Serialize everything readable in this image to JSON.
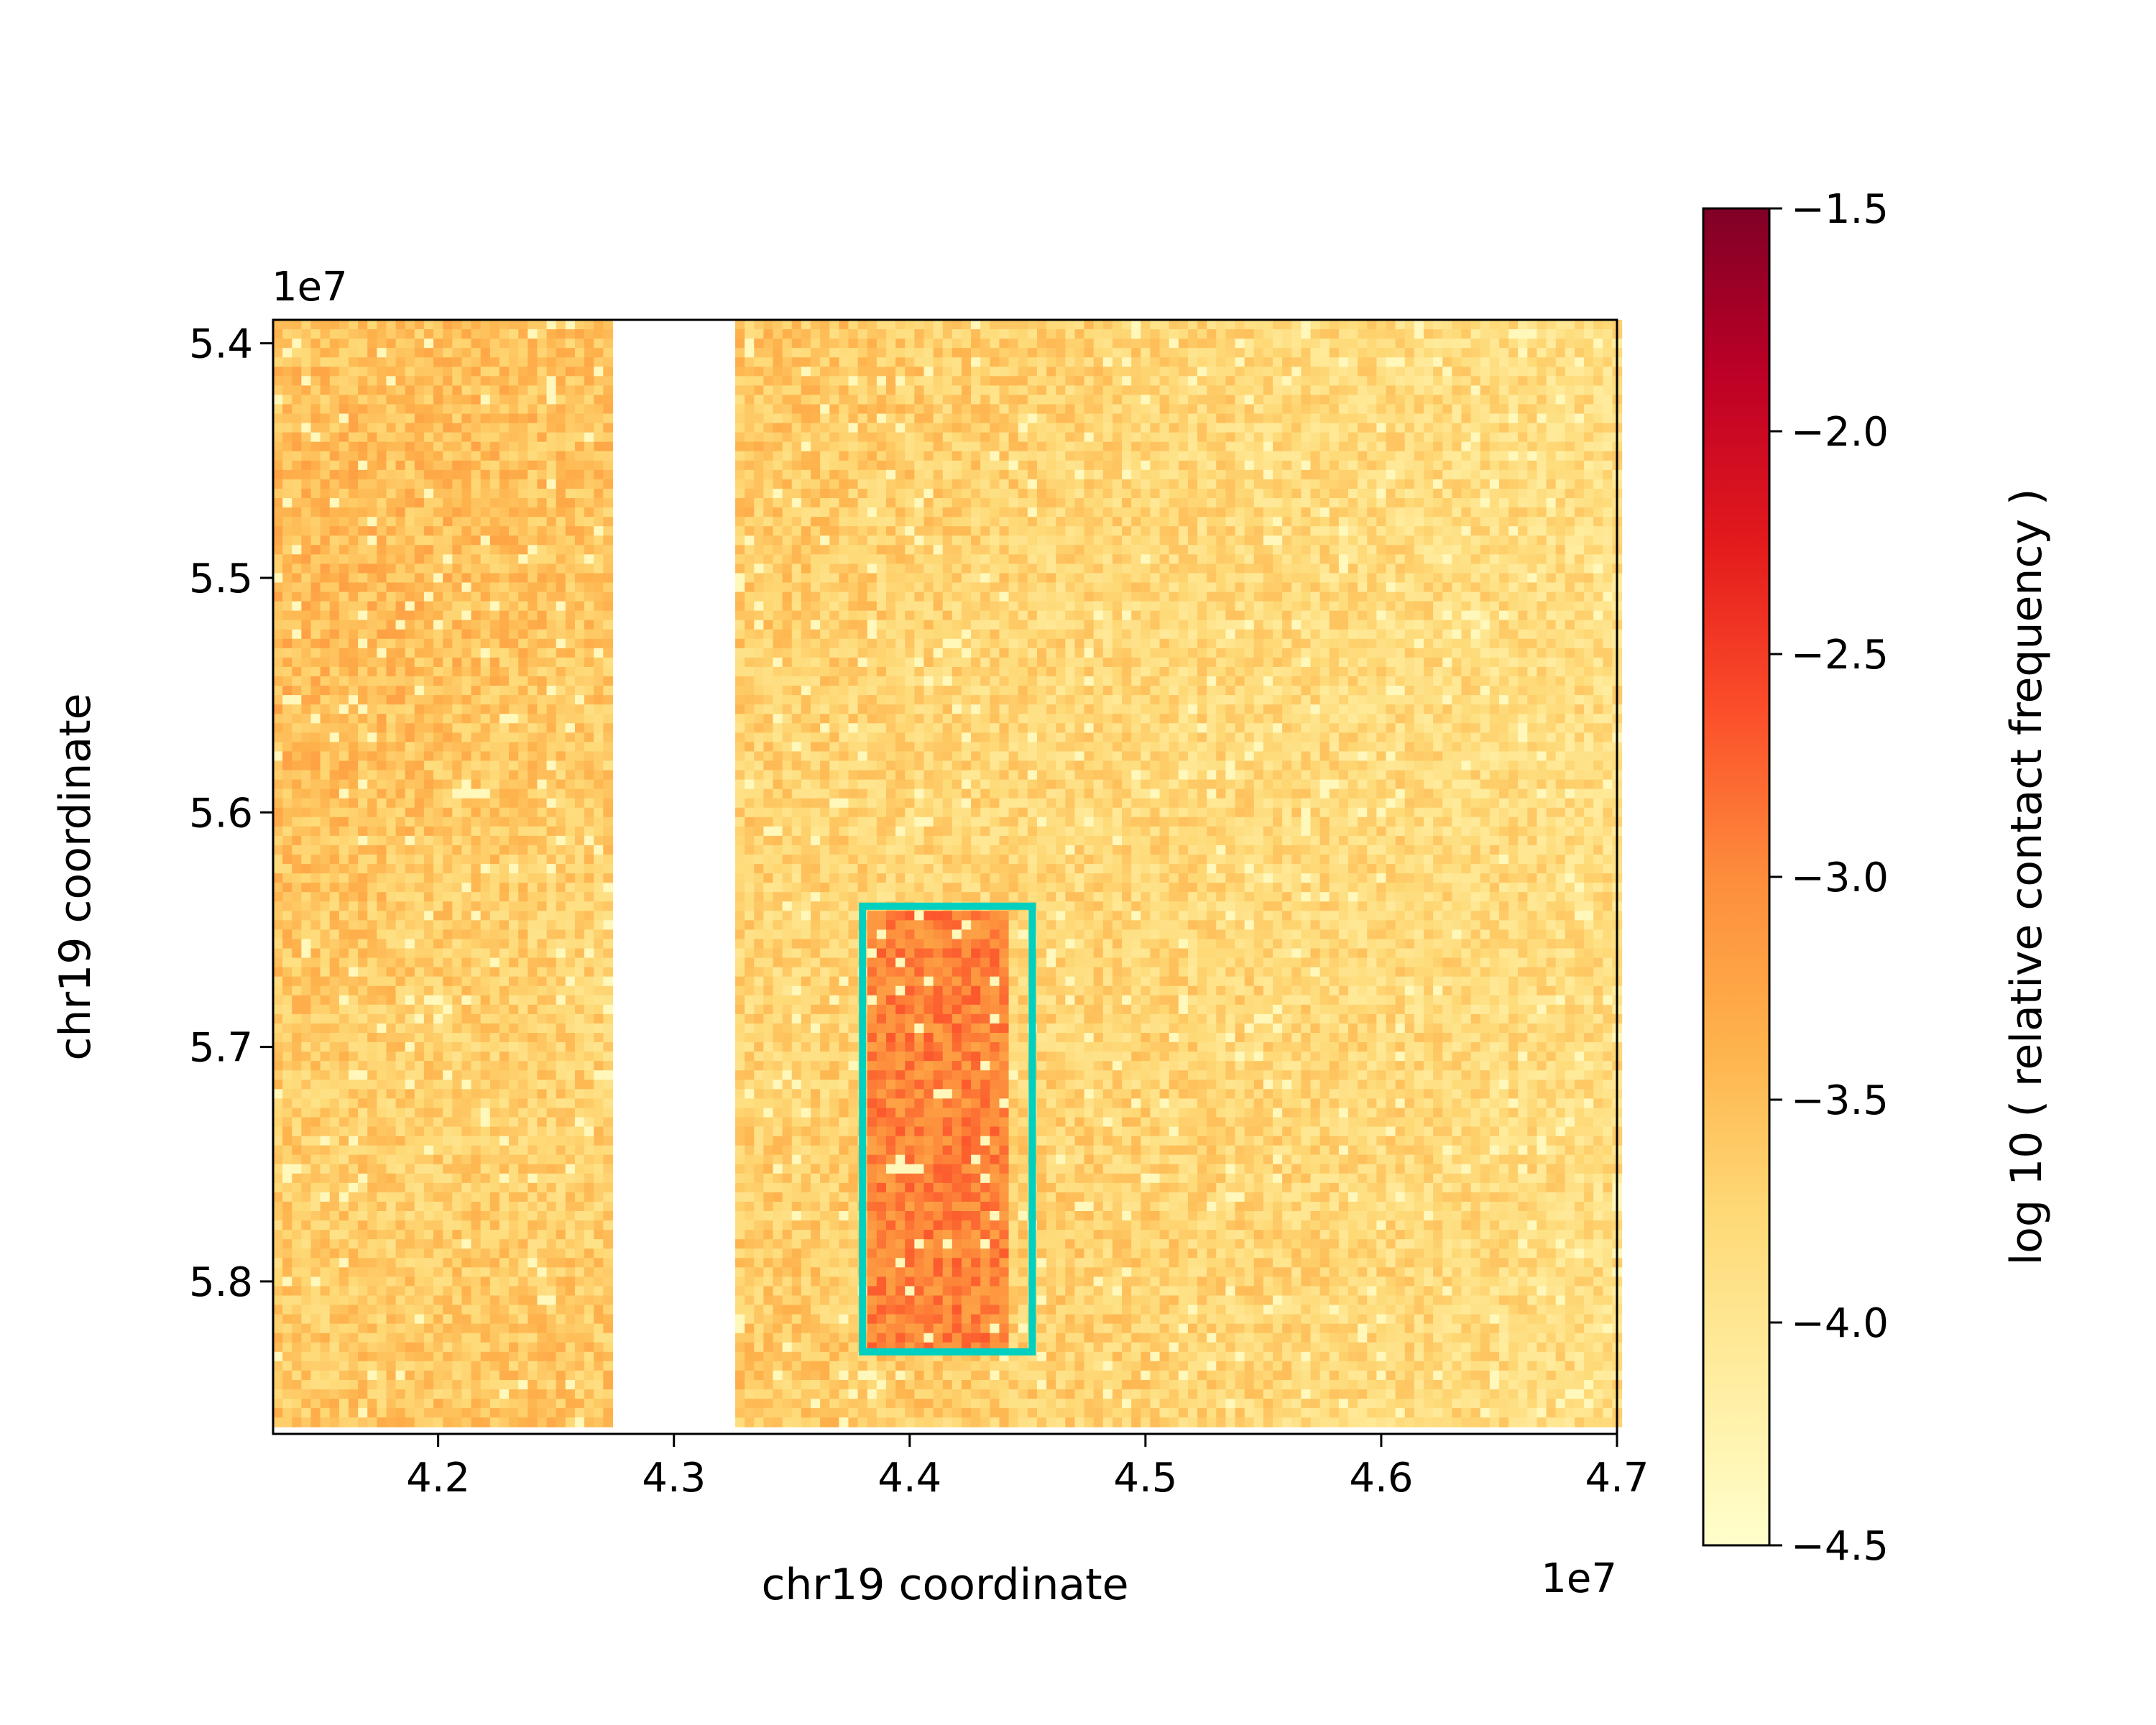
{
  "chart_data": {
    "type": "heatmap",
    "xlabel": "chr19 coordinate",
    "ylabel": "chr19 coordinate",
    "x_offset_text": "1e7",
    "y_offset_text": "1e7",
    "xlim": [
      41300000,
      47000000
    ],
    "ylim": [
      58650000,
      53900000
    ],
    "x_ticks": [
      42000000,
      43000000,
      44000000,
      45000000,
      46000000,
      47000000
    ],
    "x_tick_labels": [
      "4.2",
      "4.3",
      "4.4",
      "4.5",
      "4.6",
      "4.7"
    ],
    "y_ticks": [
      54000000,
      55000000,
      56000000,
      57000000,
      58000000
    ],
    "y_tick_labels": [
      "5.4",
      "5.5",
      "5.6",
      "5.7",
      "5.8"
    ],
    "colorbar": {
      "label": "log 10 ( relative contact frequency )",
      "range": [
        -4.5,
        -1.5
      ],
      "ticks": [
        -1.5,
        -2.0,
        -2.5,
        -3.0,
        -3.5,
        -4.0,
        -4.5
      ],
      "tick_labels": [
        "−1.5",
        "−2.0",
        "−2.5",
        "−3.0",
        "−3.5",
        "−4.0",
        "−4.5"
      ],
      "colormap": "YlOrRd",
      "colors": [
        "#ffffcc",
        "#ffeda0",
        "#fed976",
        "#feb24c",
        "#fd8d3c",
        "#fc4e2a",
        "#e31a1c",
        "#bd0026",
        "#800026"
      ]
    },
    "grid": false,
    "data_extent": {
      "x": [
        41300000,
        47000000
      ],
      "y": [
        53900000,
        58600000
      ]
    },
    "masked_x_ranges": [
      [
        42730000,
        43280000
      ],
      [
        43310000,
        43320000
      ],
      [
        43350000,
        43360000
      ],
      [
        44380000,
        44390000
      ],
      [
        44460000,
        44470000
      ]
    ],
    "masked_y_ranges": [
      [
        54770000,
        54790000
      ]
    ],
    "background_log10_range": [
      -4.1,
      -3.2
    ],
    "enriched_region": {
      "x": [
        43800000,
        44400000
      ],
      "y": [
        56400000,
        58300000
      ],
      "log10_level": -2.95
    },
    "highlight_box": {
      "x": [
        43800000,
        44520000
      ],
      "y": [
        56400000,
        58300000
      ],
      "color": "#00d0c0"
    }
  }
}
